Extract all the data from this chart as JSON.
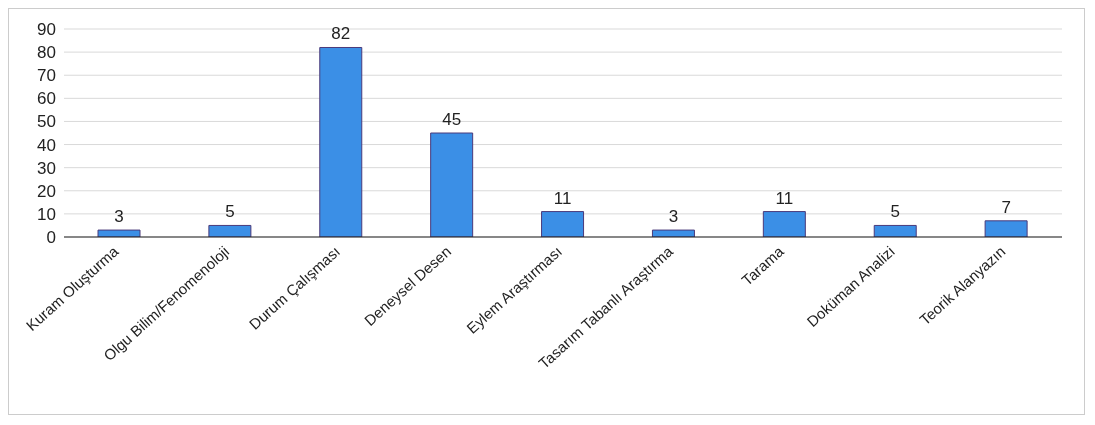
{
  "chart_data": {
    "type": "bar",
    "categories": [
      "Kuram Oluşturma",
      "Olgu Bilim/Fenomenoloji",
      "Durum Çalışması",
      "Deneysel Desen",
      "Eylem Araştırması",
      "Tasarım Tabanlı Araştırma",
      "Tarama",
      "Doküman Analizi",
      "Teorik Alanyazın"
    ],
    "values": [
      3,
      5,
      82,
      45,
      11,
      3,
      11,
      5,
      7
    ],
    "color": "#3b8fe6",
    "ylim": [
      0,
      90
    ],
    "yticks": [
      0,
      10,
      20,
      30,
      40,
      50,
      60,
      70,
      80,
      90
    ],
    "grid": "y",
    "data_labels": true
  }
}
